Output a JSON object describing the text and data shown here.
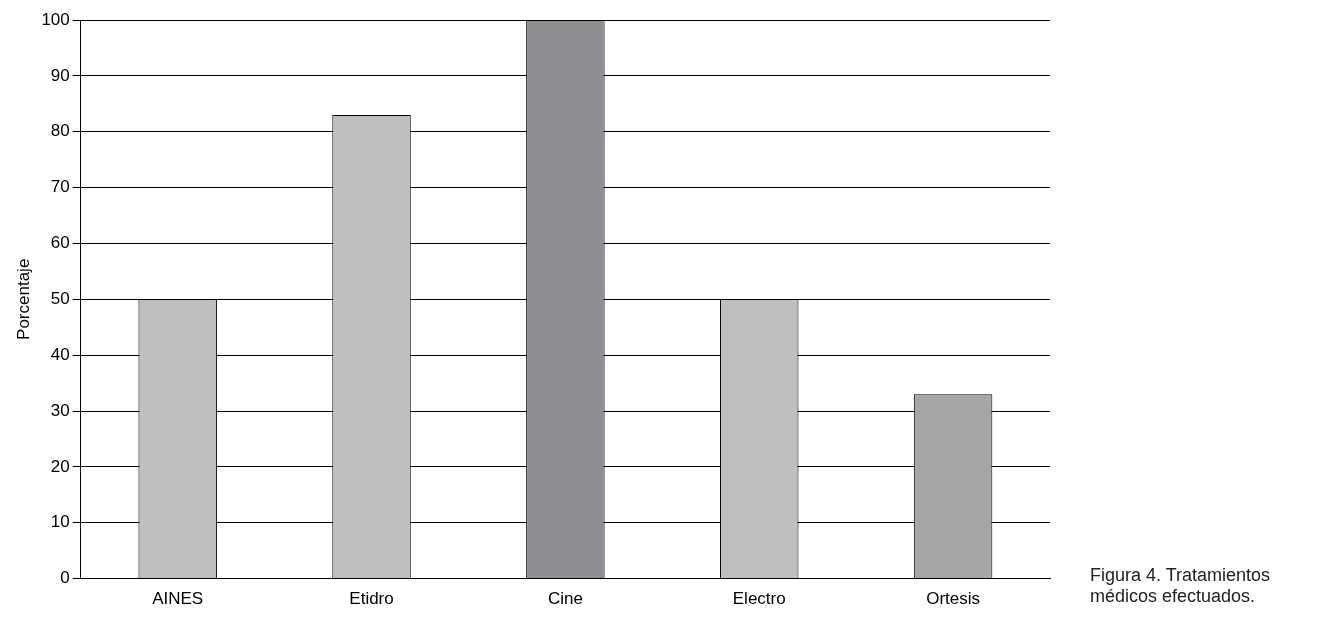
{
  "chart_data": {
    "type": "bar",
    "ylabel": "Porcentaje",
    "categories": [
      "AINES",
      "Etidro",
      "Cine",
      "Electro",
      "Ortesis"
    ],
    "values": [
      50,
      83,
      100,
      50,
      33
    ],
    "colors": [
      "#bebebe",
      "#bebebe",
      "#8e8e92",
      "#bebebe",
      "#a6a6a8"
    ],
    "ylim": [
      0,
      100
    ],
    "yticks": [
      0,
      10,
      20,
      30,
      40,
      50,
      60,
      70,
      80,
      90,
      100
    ],
    "grid": "y",
    "annotations": [
      "Figura 4. Tratamientos médicos efectuados."
    ]
  }
}
